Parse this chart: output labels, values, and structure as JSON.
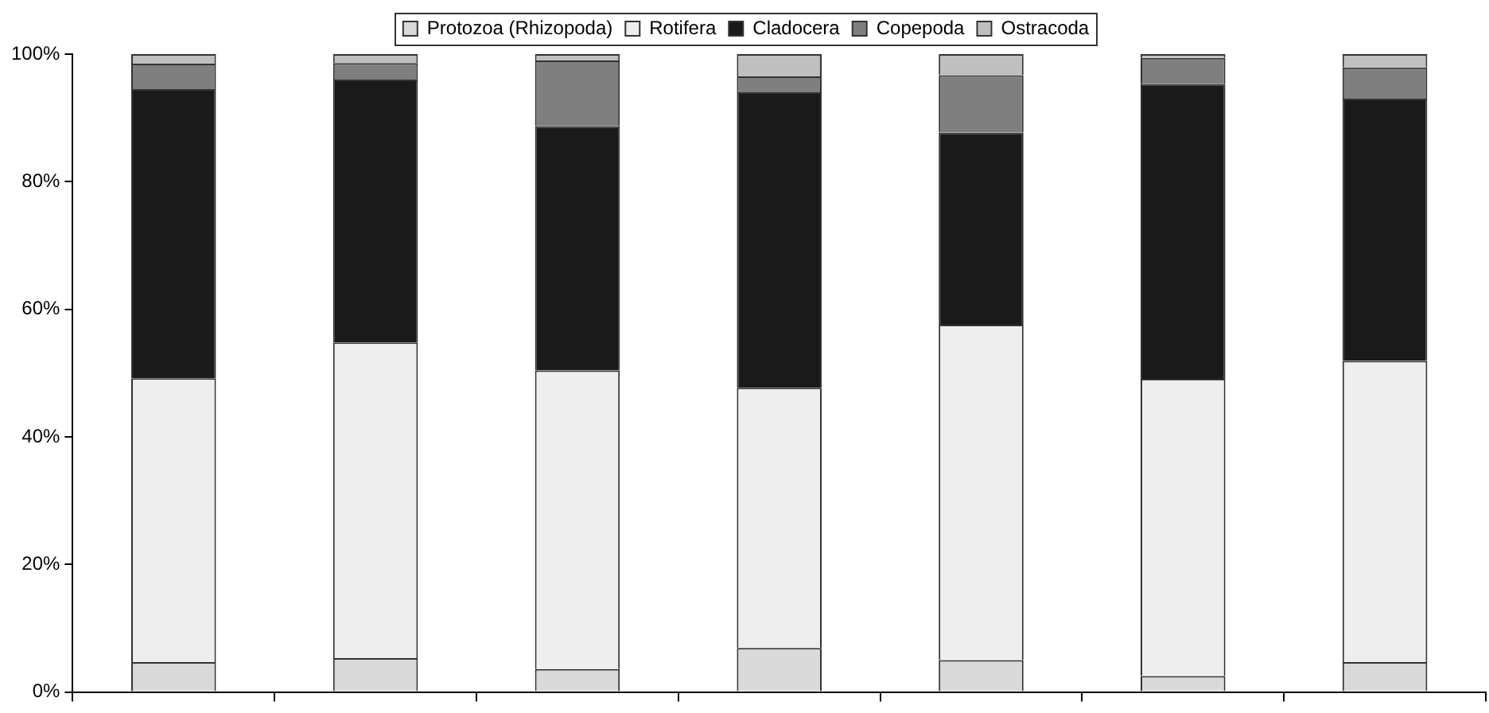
{
  "chart_data": {
    "type": "bar",
    "stacked": true,
    "categories": [
      null,
      null,
      null,
      null,
      null,
      null,
      null
    ],
    "series": [
      {
        "name": "Protozoa (Rhizopoda)",
        "color": "#d9d9d9",
        "values": [
          4.7,
          5.3,
          3.6,
          6.9,
          5.0,
          2.5,
          4.7
        ]
      },
      {
        "name": "Rotifera",
        "color": "#eeeeee",
        "values": [
          44.5,
          49.5,
          46.8,
          40.8,
          52.6,
          46.6,
          47.2
        ]
      },
      {
        "name": "Cladocera",
        "color": "#1a1a1a",
        "values": [
          45.3,
          41.2,
          38.3,
          46.3,
          30.1,
          46.2,
          41.1
        ]
      },
      {
        "name": "Copepoda",
        "color": "#7f7f7f",
        "values": [
          4.0,
          2.6,
          10.3,
          2.5,
          9.0,
          4.1,
          4.9
        ]
      },
      {
        "name": "Ostracoda",
        "color": "#bfbfbf",
        "values": [
          1.5,
          1.4,
          1.0,
          3.5,
          3.3,
          0.6,
          2.1
        ]
      }
    ],
    "ylim": [
      0,
      100
    ],
    "yticks": [
      {
        "value": 0,
        "label": "0%"
      },
      {
        "value": 20,
        "label": "20%"
      },
      {
        "value": 40,
        "label": "40%"
      },
      {
        "value": 60,
        "label": "60%"
      },
      {
        "value": 80,
        "label": "80%"
      },
      {
        "value": 100,
        "label": "100%"
      }
    ],
    "grid": false,
    "legend": "top"
  }
}
